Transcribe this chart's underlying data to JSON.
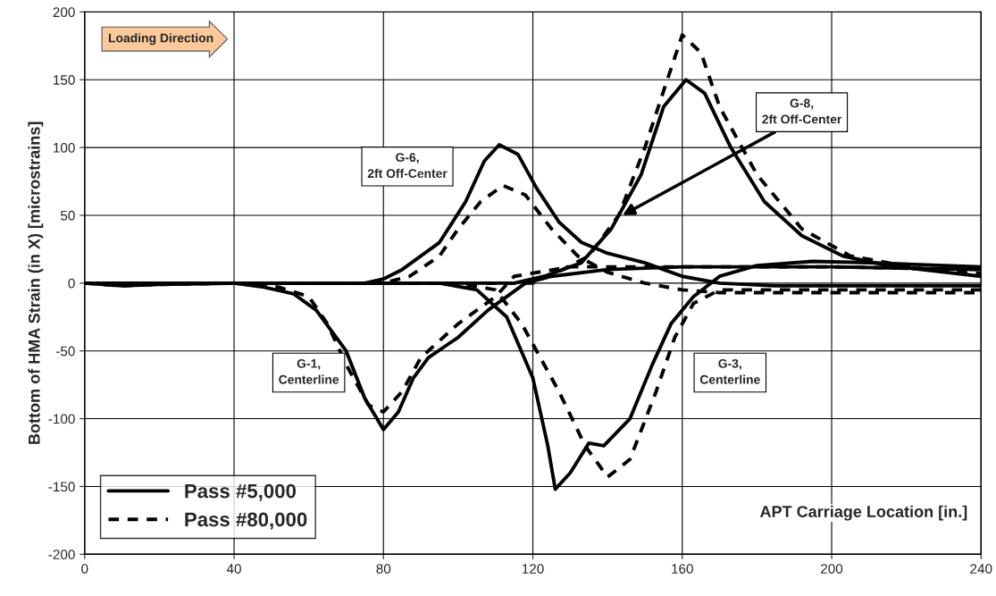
{
  "chart_data": {
    "type": "line",
    "ylabel": "Bottom of HMA Strain (in X) [microstrains]",
    "xlabel": "APT Carriage Location [in.]",
    "xlim": [
      0,
      240
    ],
    "xticks": [
      0,
      40,
      80,
      120,
      160,
      200,
      240
    ],
    "ylim": [
      -200,
      200
    ],
    "yticks": [
      -200,
      -150,
      -100,
      -50,
      0,
      50,
      100,
      150,
      200
    ],
    "grid": true,
    "legend": "bottom left",
    "marker": "none",
    "series": [
      {
        "name": "Pass #5,000",
        "color": "#000000",
        "line_style": "solid",
        "x": [
          0,
          10,
          20,
          40,
          48,
          56,
          62,
          70,
          75,
          80,
          84,
          88,
          92,
          100,
          108,
          118,
          125,
          140,
          160,
          200,
          240
        ],
        "values": [
          0,
          -2,
          -1,
          0,
          -3,
          -8,
          -20,
          -50,
          -85,
          -108,
          -95,
          -70,
          -55,
          -40,
          -20,
          0,
          5,
          10,
          12,
          12,
          10
        ]
      },
      {
        "name": "Pass #80,000",
        "color": "#000000",
        "line_style": "dashed",
        "x": [
          0,
          10,
          20,
          40,
          52,
          60,
          65,
          70,
          76,
          80,
          85,
          90,
          100,
          110,
          115,
          130,
          150,
          200,
          240
        ],
        "values": [
          0,
          -2,
          -1,
          0,
          -3,
          -10,
          -30,
          -60,
          -90,
          -95,
          -80,
          -55,
          -30,
          -10,
          5,
          12,
          12,
          12,
          10
        ]
      },
      {
        "color": "#000000",
        "line_style": "solid",
        "x": [
          0,
          40,
          75,
          80,
          85,
          95,
          102,
          107,
          111,
          116,
          121,
          127,
          133,
          140,
          150,
          160,
          170,
          185,
          240
        ],
        "values": [
          0,
          0,
          0,
          3,
          10,
          30,
          60,
          90,
          102,
          95,
          70,
          45,
          30,
          22,
          15,
          5,
          0,
          -2,
          -2
        ]
      },
      {
        "color": "#000000",
        "line_style": "dashed",
        "x": [
          0,
          40,
          80,
          87,
          95,
          100,
          106,
          112,
          118,
          125,
          132,
          140,
          150,
          160,
          170,
          240
        ],
        "values": [
          0,
          0,
          0,
          5,
          20,
          40,
          60,
          72,
          65,
          40,
          20,
          8,
          0,
          -5,
          -7,
          -7
        ]
      },
      {
        "color": "#000000",
        "line_style": "solid",
        "x": [
          0,
          60,
          95,
          105,
          113,
          120,
          124,
          126,
          130,
          135,
          139,
          146,
          152,
          157,
          163,
          170,
          180,
          195,
          210,
          240
        ],
        "values": [
          0,
          0,
          0,
          -5,
          -25,
          -70,
          -120,
          -152,
          -140,
          -118,
          -120,
          -100,
          -60,
          -30,
          -10,
          5,
          13,
          16,
          15,
          12
        ]
      },
      {
        "color": "#000000",
        "line_style": "dashed",
        "x": [
          0,
          60,
          100,
          110,
          117,
          127,
          134,
          140,
          146,
          153,
          158,
          163,
          170,
          180,
          240
        ],
        "values": [
          0,
          0,
          0,
          -5,
          -30,
          -80,
          -120,
          -143,
          -130,
          -80,
          -40,
          -15,
          -5,
          -5,
          -5
        ]
      },
      {
        "color": "#000000",
        "line_style": "solid",
        "x": [
          0,
          60,
          115,
          123,
          133,
          141,
          149,
          155,
          161,
          166,
          173,
          182,
          192,
          203,
          215,
          240
        ],
        "values": [
          0,
          0,
          0,
          5,
          15,
          40,
          80,
          130,
          150,
          140,
          100,
          60,
          35,
          20,
          13,
          5
        ]
      },
      {
        "color": "#000000",
        "line_style": "dashed",
        "x": [
          0,
          60,
          120,
          128,
          135,
          143,
          150,
          156,
          160,
          165,
          170,
          180,
          192,
          205,
          225,
          240
        ],
        "values": [
          0,
          0,
          0,
          10,
          20,
          50,
          100,
          150,
          183,
          170,
          130,
          80,
          40,
          20,
          10,
          7
        ]
      }
    ],
    "annotations": [
      "Loading Direction",
      "G-6,\n2ft Off-Center",
      "G-1,\nCenterline",
      "G-3,\nCenterline",
      {
        "text": "G-8,\n2ft Off-Center",
        "x": 144,
        "y": 50
      }
    ]
  }
}
